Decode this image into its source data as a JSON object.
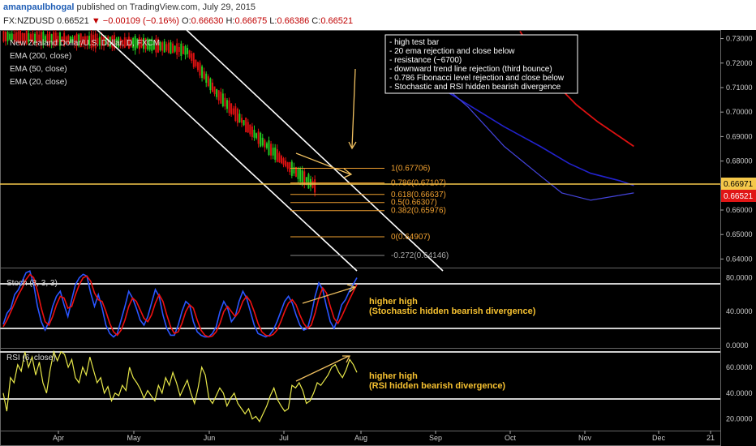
{
  "header": {
    "author": "amanpaulbhogal",
    "published": "published on TradingView.com, July 29, 2015",
    "symbol": "FX:NZDUSD",
    "last": "0.66521",
    "change": "▼ −0.00109 (−0.16%)",
    "open": "0.66630",
    "high": "0.66675",
    "low": "0.66386",
    "close": "0.66521"
  },
  "legend": {
    "title": "New Zealand Dollar/U.S. Dollar, D, FXCM",
    "ema200": "EMA (200, close)",
    "ema50": "EMA (50, close)",
    "ema20": "EMA (20, close)"
  },
  "notes": [
    "- high test bar",
    "- 20 ema rejection and close below",
    "- resistance (~6700)",
    "- downward trend line rejection (third bounce)",
    "- 0.786 Fibonacci level rejection and close below",
    "- Stochastic and RSI hidden bearish divergence"
  ],
  "fib_labels": [
    "1(0.67706)",
    "0.786(0.67107)",
    "0.618(0.66637)",
    "0.5(0.66307)",
    "0.382(0.65976)",
    "0(0.64907)",
    "-0.272(0.64146)"
  ],
  "stoch_label": "Stoch (8, 3, 3)",
  "rsi_label": "RSI (6, close)",
  "stoch_note": [
    "higher high",
    "(Stochastic hidden bearish divergence)"
  ],
  "rsi_note": [
    "higher high",
    "(RSI hidden bearish divergence)"
  ],
  "price_badges": {
    "resistance": "0.66971",
    "last": "0.66521"
  },
  "colors": {
    "ema200": "#dd1111",
    "ema50": "#2222cc",
    "stoch_k": "#2a55ff",
    "stoch_d": "#ee1111",
    "rsi": "#e8e84a",
    "fib": "#f0a030",
    "resistance": "#f5c84a",
    "channel": "#ffffff",
    "bull": "#22cc22",
    "bear": "#dd1111"
  },
  "chart_data": [
    {
      "type": "candlestick",
      "title": "New Zealand Dollar/U.S. Dollar, D, FXCM",
      "x_ticks": [
        "Apr",
        "May",
        "Jun",
        "Jul",
        "Aug",
        "Sep",
        "Oct",
        "Nov",
        "Dec",
        "21"
      ],
      "y_ticks": [
        "0.73000",
        "0.72000",
        "0.71000",
        "0.70000",
        "0.69000",
        "0.68000",
        "0.67000",
        "0.66000",
        "0.65000",
        "0.64000"
      ],
      "ylim": [
        0.6365,
        0.7335
      ],
      "series_names": [
        "EMA (200, close)",
        "EMA (50, close)",
        "EMA (20, close)"
      ],
      "resistance": 0.66971,
      "last_price": 0.66521,
      "fib_levels": [
        0.67706,
        0.67107,
        0.66637,
        0.66307,
        0.65976,
        0.64907,
        0.64146
      ],
      "ema200": [
        [
          0.722,
          0.733
        ],
        [
          0.745,
          0.722
        ],
        [
          0.77,
          0.712
        ],
        [
          0.8,
          0.703
        ],
        [
          0.83,
          0.696
        ],
        [
          0.86,
          0.69
        ],
        [
          0.88,
          0.686
        ]
      ],
      "ema50": [
        [
          0.55,
          0.722
        ],
        [
          0.6,
          0.712
        ],
        [
          0.65,
          0.703
        ],
        [
          0.7,
          0.694
        ],
        [
          0.75,
          0.686
        ],
        [
          0.79,
          0.679
        ],
        [
          0.82,
          0.675
        ],
        [
          0.86,
          0.672
        ],
        [
          0.88,
          0.67
        ]
      ],
      "ema20": [
        [
          0.6,
          0.715
        ],
        [
          0.65,
          0.702
        ],
        [
          0.7,
          0.686
        ],
        [
          0.75,
          0.674
        ],
        [
          0.78,
          0.667
        ],
        [
          0.82,
          0.664
        ],
        [
          0.86,
          0.666
        ],
        [
          0.88,
          0.667
        ]
      ]
    },
    {
      "type": "line",
      "title": "Stoch (8, 3, 3)",
      "y_ticks": [
        "80.0000",
        "40.0000",
        "0.0000"
      ],
      "ylim": [
        -3,
        92
      ],
      "series": [
        {
          "name": "%K",
          "values": [
            25,
            38,
            44,
            60,
            66,
            76,
            86,
            88,
            72,
            46,
            28,
            18,
            28,
            46,
            58,
            64,
            48,
            34,
            54,
            72,
            80,
            84,
            82,
            62,
            46,
            60,
            44,
            24,
            14,
            10,
            14,
            30,
            46,
            64,
            56,
            44,
            30,
            24,
            34,
            50,
            66,
            58,
            36,
            20,
            12,
            12,
            24,
            40,
            52,
            48,
            28,
            16,
            12,
            10,
            10,
            14,
            22,
            40,
            52,
            44,
            28,
            34,
            52,
            64,
            56,
            40,
            24,
            14,
            12,
            10,
            12,
            18,
            28,
            40,
            52,
            58,
            50,
            36,
            24,
            18,
            20,
            36,
            58,
            74,
            66,
            46,
            28,
            20,
            32,
            48,
            54,
            64,
            72,
            80
          ]
        },
        {
          "name": "%D",
          "values": [
            22,
            30,
            40,
            50,
            60,
            68,
            78,
            84,
            80,
            64,
            44,
            28,
            24,
            34,
            48,
            58,
            56,
            44,
            46,
            60,
            72,
            80,
            82,
            76,
            62,
            54,
            52,
            40,
            26,
            16,
            12,
            18,
            30,
            46,
            56,
            52,
            42,
            32,
            28,
            36,
            50,
            60,
            52,
            36,
            22,
            14,
            16,
            26,
            40,
            48,
            44,
            30,
            18,
            12,
            10,
            11,
            16,
            26,
            40,
            46,
            40,
            34,
            40,
            52,
            58,
            52,
            40,
            26,
            16,
            12,
            11,
            13,
            18,
            28,
            40,
            50,
            54,
            48,
            36,
            26,
            20,
            24,
            38,
            56,
            68,
            62,
            46,
            32,
            26,
            34,
            44,
            54,
            63,
            72
          ]
        }
      ]
    },
    {
      "type": "line",
      "title": "RSI (6, close)",
      "y_ticks": [
        "60.0000",
        "40.0000",
        "20.0000"
      ],
      "ylim": [
        11,
        75
      ],
      "series": [
        {
          "name": "RSI",
          "values": [
            40,
            26,
            52,
            48,
            62,
            57,
            72,
            60,
            68,
            54,
            64,
            48,
            40,
            58,
            72,
            65,
            72,
            70,
            60,
            66,
            52,
            48,
            60,
            54,
            68,
            58,
            48,
            52,
            40,
            45,
            34,
            40,
            38,
            46,
            42,
            60,
            52,
            48,
            43,
            36,
            42,
            38,
            34,
            46,
            40,
            52,
            46,
            56,
            48,
            38,
            44,
            50,
            40,
            32,
            44,
            60,
            54,
            36,
            32,
            38,
            44,
            40,
            30,
            36,
            40,
            32,
            28,
            24,
            28,
            20,
            22,
            18,
            24,
            30,
            38,
            44,
            35,
            30,
            26,
            28,
            46,
            44,
            48,
            42,
            32,
            34,
            40,
            48,
            46,
            50,
            54,
            60,
            62,
            56,
            52,
            58,
            66,
            62,
            56
          ]
        }
      ]
    }
  ]
}
